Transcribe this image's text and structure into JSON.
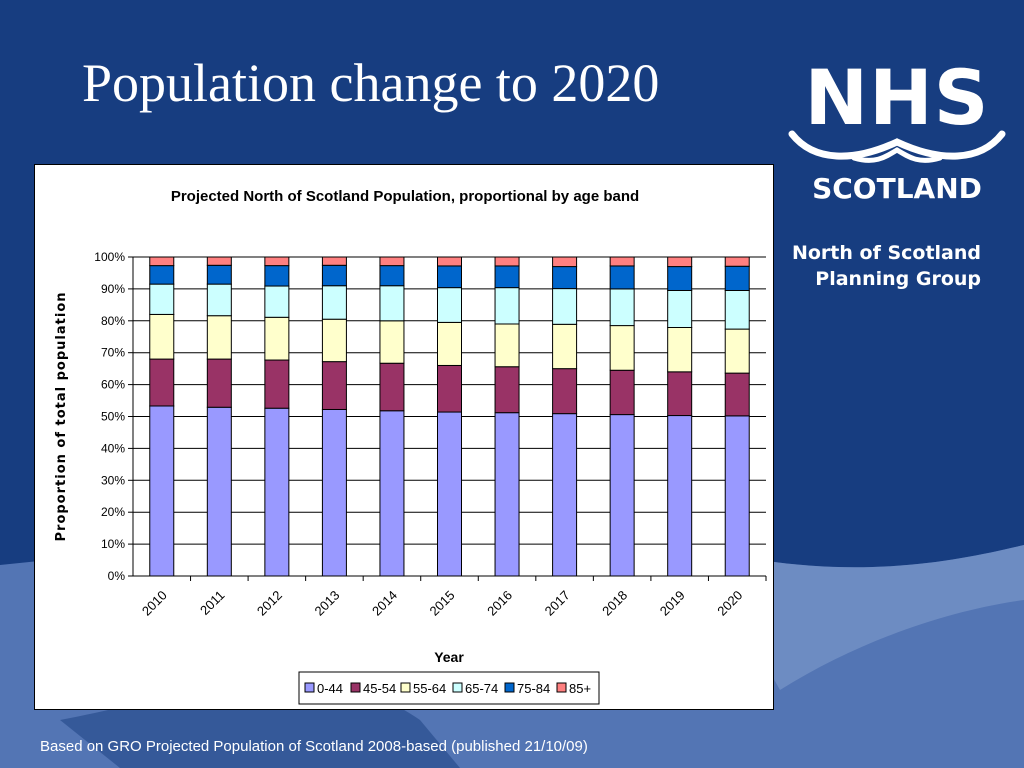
{
  "slide": {
    "title": "Population change to 2020",
    "org_line1": "North of Scotland",
    "org_line2": "Planning Group",
    "footer": "Based on GRO Projected Population of Scotland 2008-based (published 21/10/09)"
  },
  "logo": {
    "word": "NHS",
    "sub": "SCOTLAND",
    "icon": "nhs-scotland-logo"
  },
  "colors": {
    "background": "#173d80",
    "wave": "#5e7fbd"
  },
  "chart_data": {
    "type": "bar",
    "stacked": true,
    "title": "Projected North of Scotland Population, proportional by age band",
    "xlabel": "Year",
    "ylabel": "Proportion of total population",
    "ylim": [
      0,
      100
    ],
    "yticks": [
      "0%",
      "10%",
      "20%",
      "30%",
      "40%",
      "50%",
      "60%",
      "70%",
      "80%",
      "90%",
      "100%"
    ],
    "categories": [
      "2010",
      "2011",
      "2012",
      "2013",
      "2014",
      "2015",
      "2016",
      "2017",
      "2018",
      "2019",
      "2020"
    ],
    "series": [
      {
        "name": "0-44",
        "color": "#9999ff",
        "values": [
          53.3,
          52.9,
          52.6,
          52.2,
          51.8,
          51.4,
          51.2,
          50.9,
          50.6,
          50.3,
          50.2
        ]
      },
      {
        "name": "45-54",
        "color": "#993366",
        "values": [
          14.7,
          15.1,
          15.1,
          15.0,
          14.9,
          14.6,
          14.4,
          14.1,
          13.9,
          13.7,
          13.4
        ]
      },
      {
        "name": "55-64",
        "color": "#ffffcc",
        "values": [
          14.0,
          13.6,
          13.4,
          13.3,
          13.3,
          13.5,
          13.4,
          13.9,
          14.0,
          13.9,
          13.8
        ]
      },
      {
        "name": "65-74",
        "color": "#ccffff",
        "values": [
          9.5,
          9.9,
          9.8,
          10.5,
          11.0,
          10.9,
          11.4,
          11.2,
          11.5,
          11.6,
          12.1
        ]
      },
      {
        "name": "75-84",
        "color": "#0066cc",
        "values": [
          5.8,
          5.9,
          6.4,
          6.4,
          6.3,
          6.8,
          6.8,
          6.9,
          7.2,
          7.5,
          7.6
        ]
      },
      {
        "name": "85+",
        "color": "#ff8080",
        "values": [
          2.7,
          2.6,
          2.7,
          2.6,
          2.7,
          2.8,
          2.8,
          3.0,
          2.8,
          3.0,
          2.9
        ]
      }
    ],
    "legend": {
      "placement": "bottom"
    },
    "grid": true
  }
}
